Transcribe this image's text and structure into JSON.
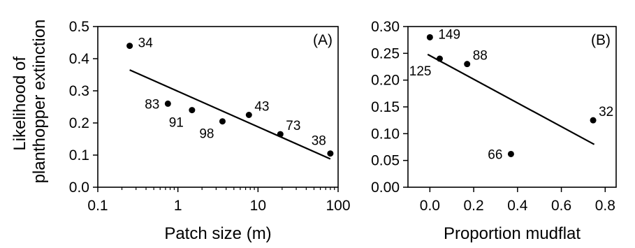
{
  "shared_ylabel": [
    "Likelihood of",
    "planthopper extinction"
  ],
  "chart_data": [
    {
      "type": "scatter",
      "panel_label": "(A)",
      "xlabel": "Patch size (m)",
      "xscale": "log",
      "xlim": [
        0.1,
        100
      ],
      "xticks": [
        0.1,
        1,
        10,
        100
      ],
      "xtick_labels": [
        "0.1",
        "1",
        "10",
        "100"
      ],
      "ylim": [
        0,
        0.5
      ],
      "yticks": [
        0,
        0.1,
        0.2,
        0.3,
        0.4,
        0.5
      ],
      "ytick_labels": [
        "0.0",
        "0.1",
        "0.2",
        "0.3",
        "0.4",
        "0.5"
      ],
      "grid": false,
      "points": [
        {
          "x": 0.25,
          "y": 0.44,
          "label": "34",
          "label_side": "right"
        },
        {
          "x": 0.75,
          "y": 0.26,
          "label": "83",
          "label_side": "left"
        },
        {
          "x": 1.5,
          "y": 0.24,
          "label": "91",
          "label_side": "below-left"
        },
        {
          "x": 3.6,
          "y": 0.205,
          "label": "98",
          "label_side": "below-left"
        },
        {
          "x": 7.7,
          "y": 0.225,
          "label": "43",
          "label_side": "above-right"
        },
        {
          "x": 19,
          "y": 0.165,
          "label": "73",
          "label_side": "above-right"
        },
        {
          "x": 80,
          "y": 0.105,
          "label": "38",
          "label_side": "above-left"
        }
      ],
      "fit_line": {
        "x": [
          0.25,
          80
        ],
        "y": [
          0.365,
          0.088
        ]
      }
    },
    {
      "type": "scatter",
      "panel_label": "(B)",
      "xlabel": "Proportion mudflat",
      "xlim": [
        -0.1,
        0.85
      ],
      "xticks": [
        0.0,
        0.2,
        0.4,
        0.6,
        0.8
      ],
      "xtick_labels": [
        "0.0",
        "0.2",
        "0.4",
        "0.6",
        "0.8"
      ],
      "ylim": [
        0,
        0.3
      ],
      "yticks": [
        0,
        0.05,
        0.1,
        0.15,
        0.2,
        0.25,
        0.3
      ],
      "ytick_labels": [
        "0.00",
        "0.05",
        "0.10",
        "0.15",
        "0.20",
        "0.25",
        "0.30"
      ],
      "grid": false,
      "points": [
        {
          "x": 0.0,
          "y": 0.28,
          "label": "149",
          "label_side": "right"
        },
        {
          "x": 0.045,
          "y": 0.24,
          "label": "125",
          "label_side": "below-left"
        },
        {
          "x": 0.17,
          "y": 0.23,
          "label": "88",
          "label_side": "above-right"
        },
        {
          "x": 0.37,
          "y": 0.062,
          "label": "66",
          "label_side": "left"
        },
        {
          "x": 0.745,
          "y": 0.125,
          "label": "32",
          "label_side": "above-right"
        }
      ],
      "fit_line": {
        "x": [
          -0.01,
          0.75
        ],
        "y": [
          0.248,
          0.08
        ]
      }
    }
  ]
}
